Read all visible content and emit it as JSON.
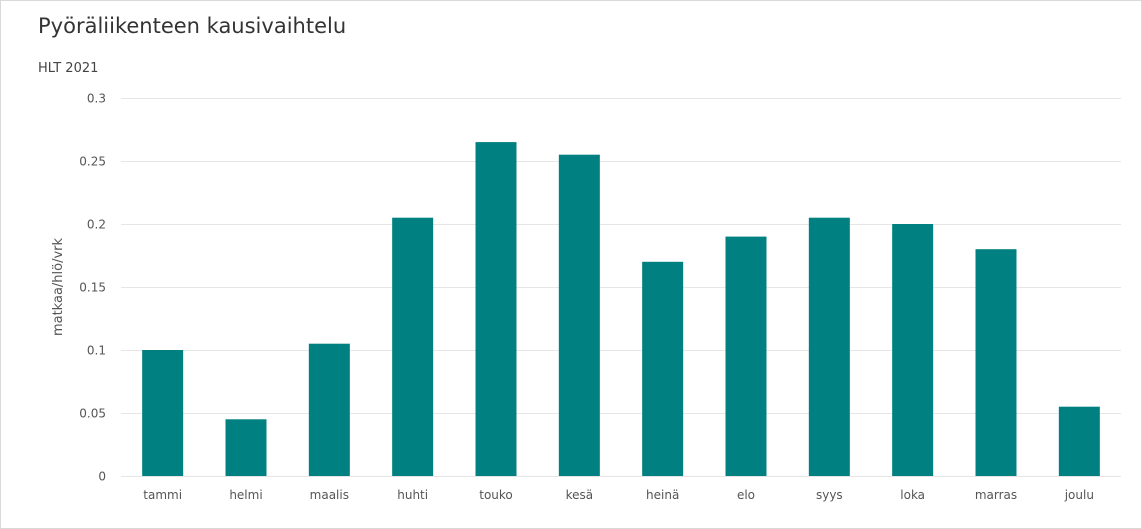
{
  "header": {
    "title": "Pyöräliikenteen kausivaihtelu",
    "subtitle": "HLT 2021"
  },
  "chart_data": {
    "type": "bar",
    "title": "Pyöräliikenteen kausivaihtelu",
    "subtitle": "HLT 2021",
    "xlabel": "",
    "ylabel": "matkaa/hlö/vrk",
    "categories": [
      "tammi",
      "helmi",
      "maalis",
      "huhti",
      "touko",
      "kesä",
      "heinä",
      "elo",
      "syys",
      "loka",
      "marras",
      "joulu"
    ],
    "values": [
      0.1,
      0.045,
      0.105,
      0.205,
      0.265,
      0.255,
      0.17,
      0.19,
      0.205,
      0.2,
      0.18,
      0.055
    ],
    "ylim": [
      0,
      0.3
    ],
    "yticks": [
      "0",
      "0.05",
      "0.1",
      "0.15",
      "0.2",
      "0.25",
      "0.3"
    ],
    "ytick_values": [
      0,
      0.05,
      0.1,
      0.15,
      0.2,
      0.25,
      0.3
    ],
    "grid": true,
    "bar_color": "#008080",
    "grid_color": "#e6e6e6"
  }
}
